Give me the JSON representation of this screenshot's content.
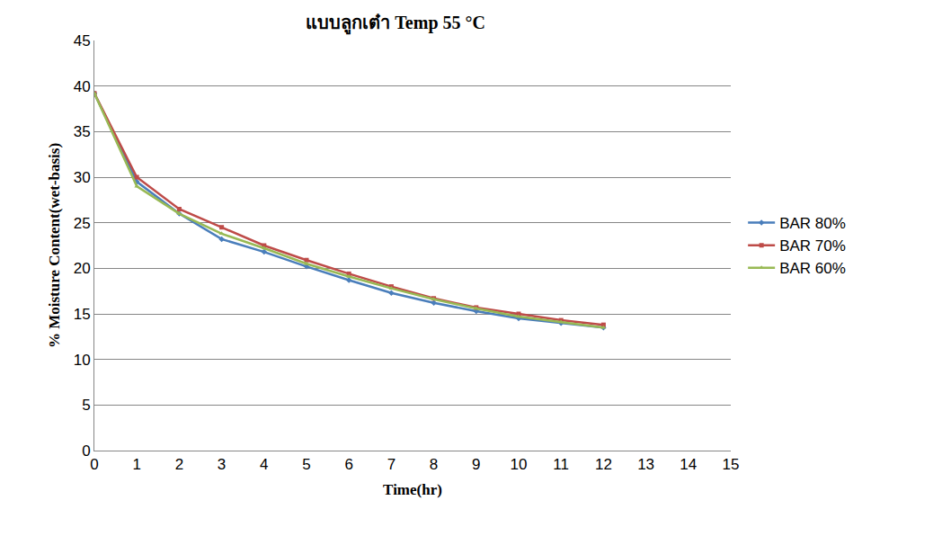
{
  "chart_data": {
    "type": "line",
    "title": "แบบลูกเต๋า Temp 55 °C",
    "x_label": "Time(hr)",
    "y_label": "% Moisture Content(wet-basis)",
    "x": [
      0,
      1,
      2,
      3,
      4,
      5,
      6,
      7,
      8,
      9,
      10,
      11,
      12
    ],
    "series": [
      {
        "name": "BAR 80%",
        "color": "#4a7ebb",
        "marker": "diamond",
        "line_style": "solid",
        "values": [
          39.2,
          29.5,
          26.0,
          23.2,
          21.8,
          20.2,
          18.7,
          17.3,
          16.2,
          15.3,
          14.5,
          14.0,
          13.5
        ]
      },
      {
        "name": "BAR 70%",
        "color": "#be4b48",
        "marker": "square",
        "line_style": "solid",
        "values": [
          39.2,
          30.0,
          26.5,
          24.5,
          22.5,
          20.9,
          19.4,
          18.0,
          16.7,
          15.7,
          15.0,
          14.3,
          13.8
        ]
      },
      {
        "name": "BAR 60%",
        "color": "#98b954",
        "marker": "triangle-up",
        "line_style": "solid",
        "values": [
          39.2,
          29.0,
          26.0,
          23.8,
          22.2,
          20.5,
          19.1,
          17.8,
          16.6,
          15.6,
          14.7,
          14.1,
          13.5
        ]
      }
    ],
    "xlim": [
      0,
      15
    ],
    "xticks": [
      0,
      1,
      2,
      3,
      4,
      5,
      6,
      7,
      8,
      9,
      10,
      11,
      12,
      13,
      14,
      15
    ],
    "ylim": [
      0,
      45
    ],
    "yticks": [
      0,
      5,
      10,
      15,
      20,
      25,
      30,
      35,
      40,
      45
    ],
    "grid": true,
    "legend": "right"
  }
}
